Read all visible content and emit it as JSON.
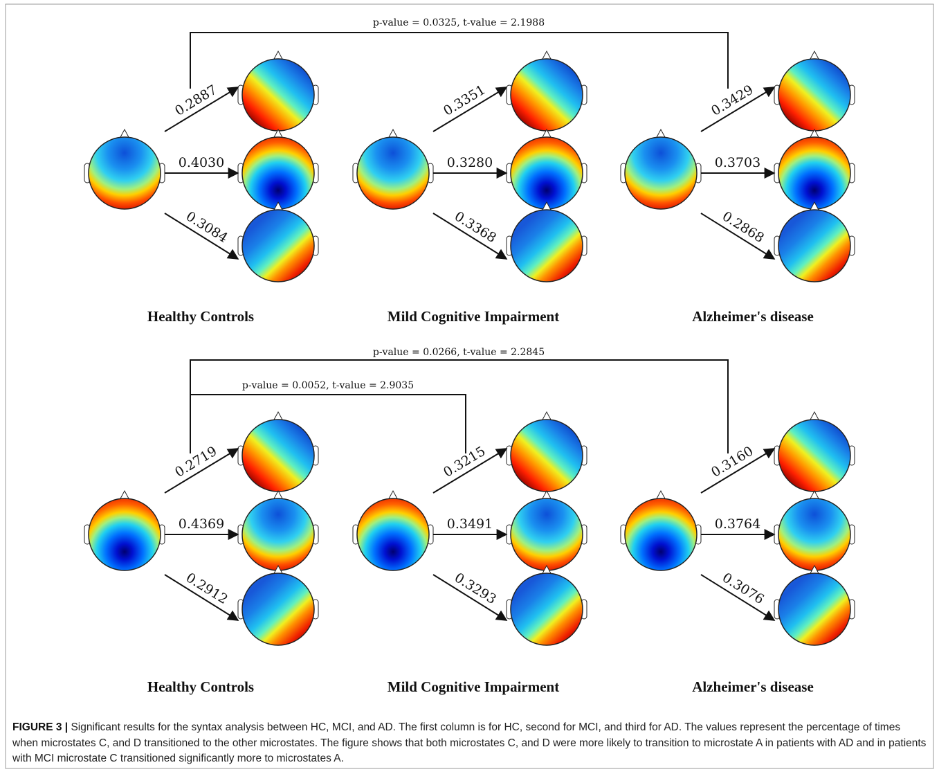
{
  "figure": {
    "panels": [
      {
        "brackets": [
          {
            "label": "p-value = 0.0325, t-value = 2.1988"
          }
        ],
        "groups": [
          {
            "name": "Healthy Controls",
            "transitions": [
              "0.2887",
              "0.4030",
              "0.3084"
            ]
          },
          {
            "name": "Mild Cognitive Impairment",
            "transitions": [
              "0.3351",
              "0.3280",
              "0.3368"
            ]
          },
          {
            "name": "Alzheimer's disease",
            "transitions": [
              "0.3429",
              "0.3703",
              "0.2868"
            ]
          }
        ]
      },
      {
        "brackets": [
          {
            "label": "p-value = 0.0266, t-value = 2.2845"
          },
          {
            "label": "p-value = 0.0052, t-value = 2.9035"
          }
        ],
        "groups": [
          {
            "name": "Healthy Controls",
            "transitions": [
              "0.2719",
              "0.4369",
              "0.2912"
            ]
          },
          {
            "name": "Mild Cognitive Impairment",
            "transitions": [
              "0.3215",
              "0.3491",
              "0.3293"
            ]
          },
          {
            "name": "Alzheimer's disease",
            "transitions": [
              "0.3160",
              "0.3764",
              "0.3076"
            ]
          }
        ]
      }
    ],
    "caption": {
      "label": "FIGURE 3 |",
      "text": "Significant results for the syntax analysis between HC, MCI, and AD. The first column is for HC, second for MCI, and third for AD. The values represent the percentage of times when microstates C, and D transitioned to the other microstates. The figure shows that both microstates C, and D were more likely to transition to microstate A in patients with AD and in patients with MCI microstate C transitioned significantly more to microstates A."
    }
  }
}
